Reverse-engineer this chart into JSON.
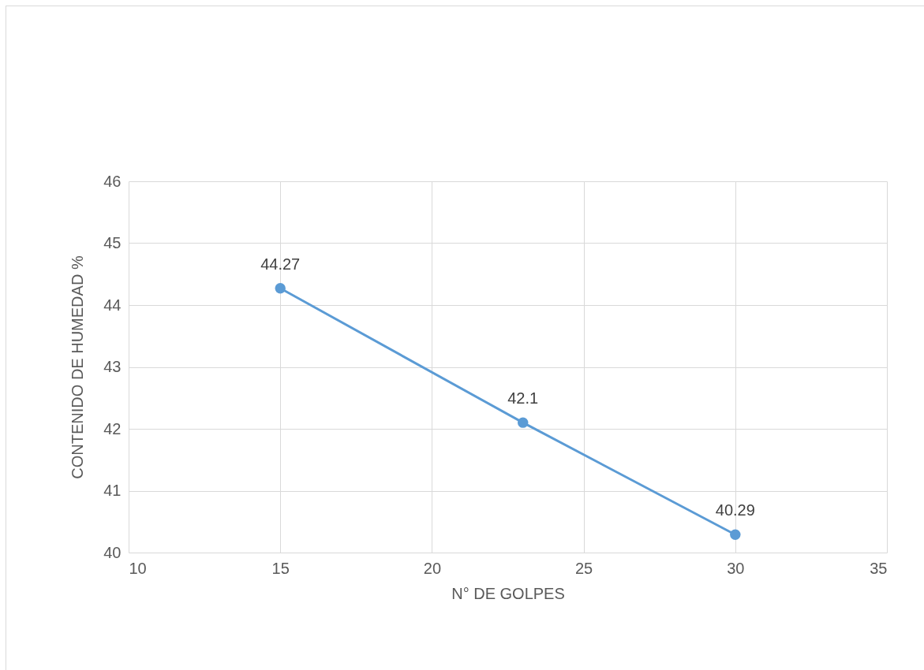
{
  "chart_data": {
    "type": "line",
    "xlabel": "N° DE GOLPES",
    "ylabel": "CONTENIDO DE HUMEDAD %",
    "x": [
      15,
      23,
      30
    ],
    "series": [
      {
        "color": "#5b9bd5",
        "values": [
          44.27,
          42.1,
          40.29
        ]
      }
    ],
    "xlim": [
      10,
      35
    ],
    "xticks": [
      10,
      15,
      20,
      25,
      30,
      35
    ],
    "ylim": [
      40,
      46
    ],
    "yticks": [
      40,
      41,
      42,
      43,
      44,
      45,
      46
    ],
    "grid": true,
    "marker": "circle",
    "line_style": "solid",
    "data_labels": true
  }
}
